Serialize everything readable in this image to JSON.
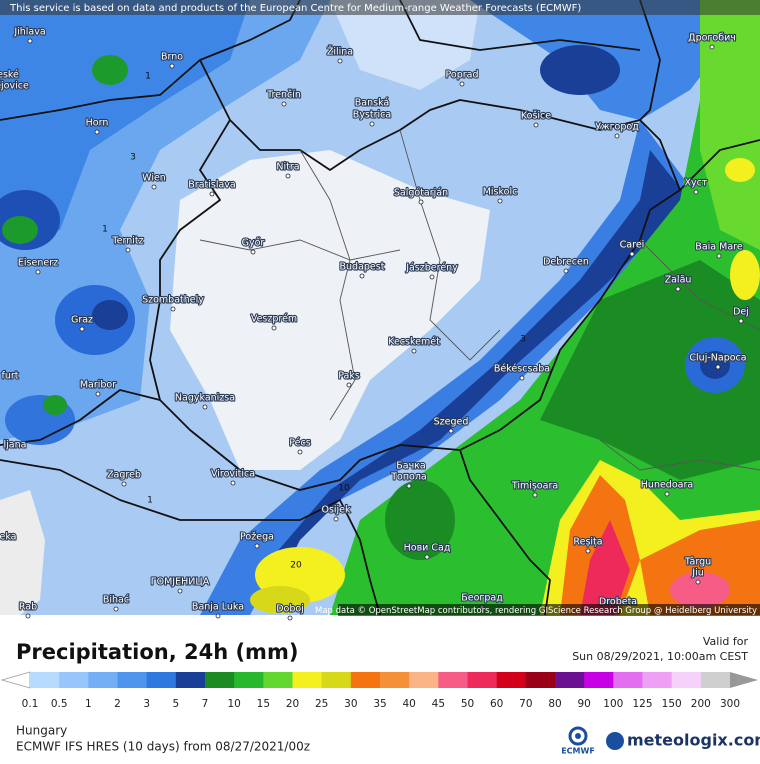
{
  "notice": "This service is based on data and products of the European Centre for Medium-range Weather Forecasts (ECMWF)",
  "cities": [
    "Jihlava",
    "Brno",
    "Žilina",
    "Poprad",
    "Дрогобич",
    "eské",
    "ějovice",
    "Trenčín",
    "Banská",
    "Bystrica",
    "Košice",
    "Horn",
    "Ужгород",
    "Nitra",
    "Wien",
    "Bratislava",
    "Salgótarján",
    "Miskolc",
    "Хуст",
    "Ternitz",
    "Győr",
    "Budapest",
    "Jászberény",
    "Debrecen",
    "Carei",
    "Baia Mare",
    "Eisenerz",
    "Szombathely",
    "Zalău",
    "Graz",
    "Veszprém",
    "Dej",
    "Kecskemét",
    "Cluj-Napoca",
    "furt",
    "Maribor",
    "Paks",
    "Békéscsaba",
    "Nagykanizsa",
    "Szeged",
    "ljana",
    "Pécs",
    "Zagreb",
    "Virovitica",
    "Бачка",
    "Топола",
    "Timișoara",
    "Hunedoara",
    "Osijek",
    "eka",
    "Požega",
    "Нови Сад",
    "Reșița",
    "Târgu",
    "Jiu",
    "ГОМЈЕНИЦА",
    "Bihać",
    "Banja Luka",
    "Doboj",
    "Београд",
    "Drobeta",
    "Rab"
  ],
  "contour_labels": [
    "1",
    "3",
    "1",
    "1",
    "3",
    "10",
    "20"
  ],
  "attribution": "Map data © OpenStreetMap contributors, rendering GIScience Research Group @ Heidelberg University",
  "title": "Precipitation, 24h (mm)",
  "valid_label": "Valid for",
  "valid_time": "Sun 08/29/2021, 10:00am CEST",
  "legend": {
    "ticks": [
      0.1,
      0.5,
      1,
      2,
      3,
      5,
      7,
      10,
      15,
      20,
      25,
      30,
      35,
      40,
      45,
      50,
      60,
      70,
      80,
      90,
      100,
      125,
      150,
      200,
      300
    ],
    "colors": [
      "#b7dbff",
      "#96c6fb",
      "#74aef5",
      "#4f95ee",
      "#2f78e0",
      "#1a3f96",
      "#1c8c22",
      "#27b82d",
      "#62d72e",
      "#f4f020",
      "#d8d81a",
      "#f37410",
      "#f69038",
      "#fbb486",
      "#f65c86",
      "#ee2a5a",
      "#d2001a",
      "#9a0018",
      "#6a1090",
      "#c800e6",
      "#e36ef0",
      "#eea0f4",
      "#f6d2fa",
      "#cfcfcf"
    ]
  },
  "region": "Hungary",
  "model": "ECMWF IFS HRES (10 days) from 08/27/2021/00z",
  "ecmwf_logo": "ECMWF",
  "brand": "meteologix.com"
}
